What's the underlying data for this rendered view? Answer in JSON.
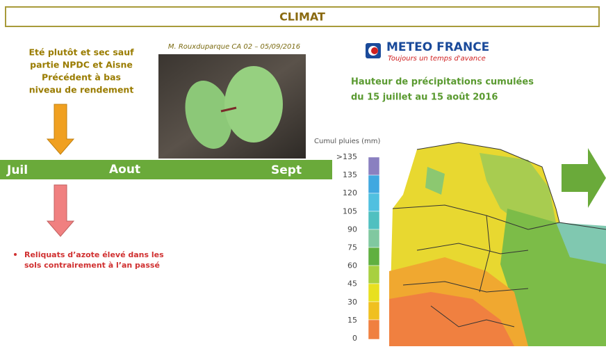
{
  "header": {
    "title": "CLIMAT"
  },
  "left_note": {
    "lines": [
      "Eté plutôt et sec sauf",
      "partie NPDC et Aisne",
      "Précédent à bas",
      "niveau de rendement"
    ]
  },
  "photo": {
    "credit": "M. Rouxduparque CA 02 – 05/09/2016"
  },
  "logo": {
    "name": "METEO FRANCE",
    "tagline": "Toujours un temps d'avance"
  },
  "map": {
    "title_lines": [
      "Hauteur de précipitations cumulées",
      "du 15 juillet au 15 août 2016"
    ],
    "legend": {
      "title": "Cumul pluies (mm)",
      "labels": [
        ">135",
        "135",
        "120",
        "105",
        "90",
        "75",
        "60",
        "45",
        "30",
        "15",
        "0"
      ]
    }
  },
  "timeline": {
    "months": [
      "Juil",
      "Aout",
      "Sept"
    ]
  },
  "bullet": {
    "lines": [
      "Reliquats d’azote élevé dans les",
      "sols contrairement à l’an passé"
    ]
  }
}
